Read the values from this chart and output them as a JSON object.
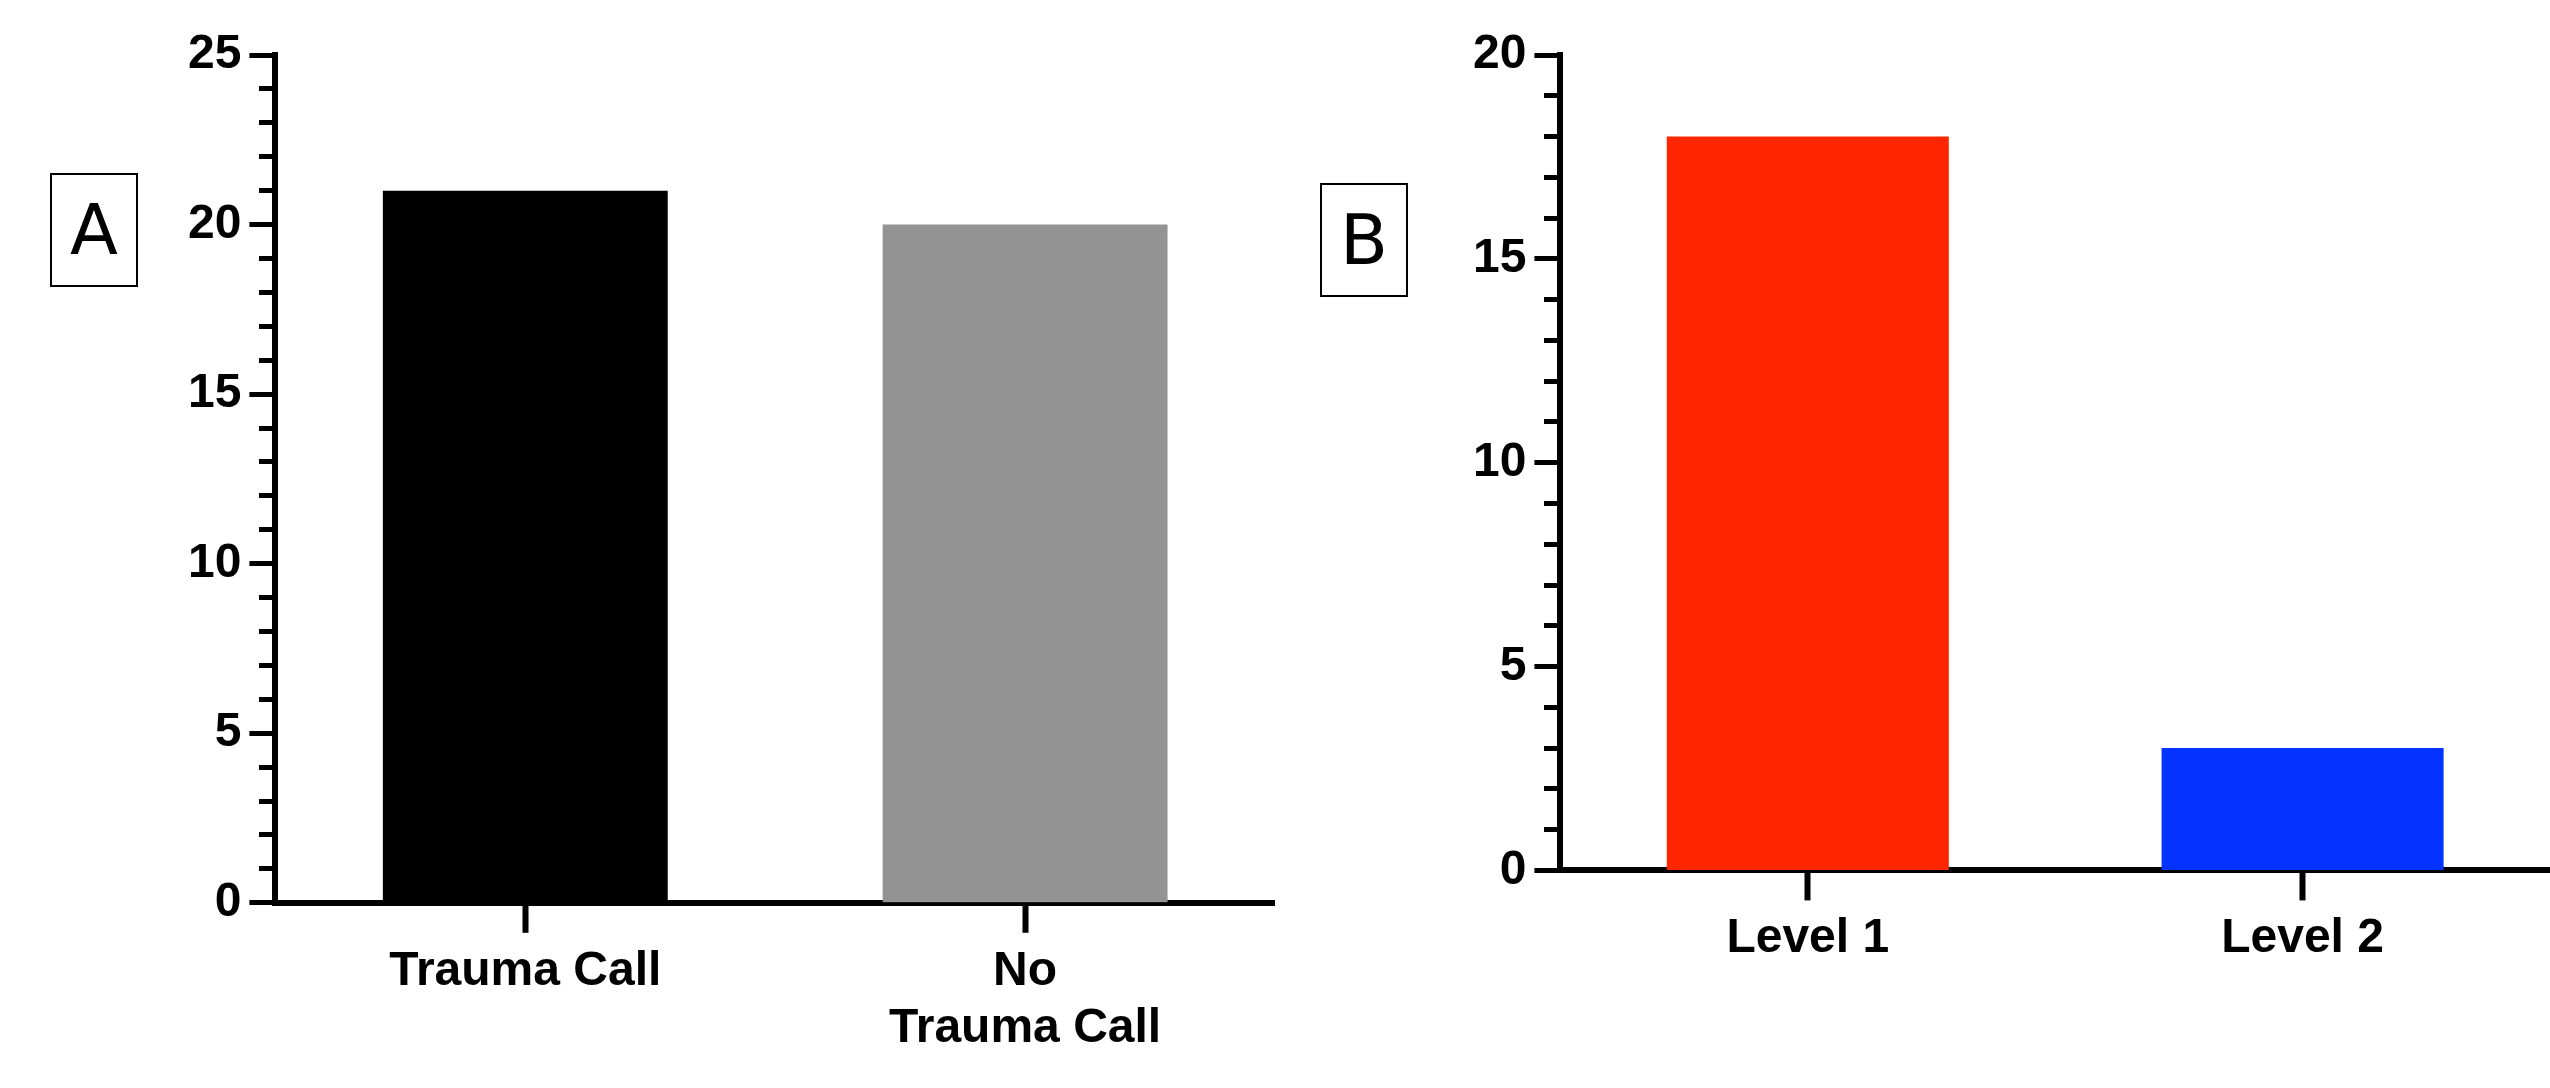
{
  "chart_data": [
    {
      "type": "bar",
      "title": "A",
      "categories": [
        "Trauma Call",
        "No\nTrauma Call"
      ],
      "colors": [
        "#000000",
        "#939393"
      ],
      "values": [
        21,
        20
      ],
      "ylim": [
        0,
        25
      ],
      "yticks": [
        0,
        5,
        10,
        15,
        20,
        25
      ],
      "grid": false,
      "legend": false
    },
    {
      "type": "bar",
      "title": "B",
      "categories": [
        "Level 1",
        "Level 2"
      ],
      "colors": [
        "#ff2600",
        "#0433ff"
      ],
      "values": [
        18,
        3
      ],
      "ylim": [
        0,
        20
      ],
      "yticks": [
        0,
        5,
        10,
        15,
        20
      ],
      "grid": false,
      "legend": false
    }
  ]
}
